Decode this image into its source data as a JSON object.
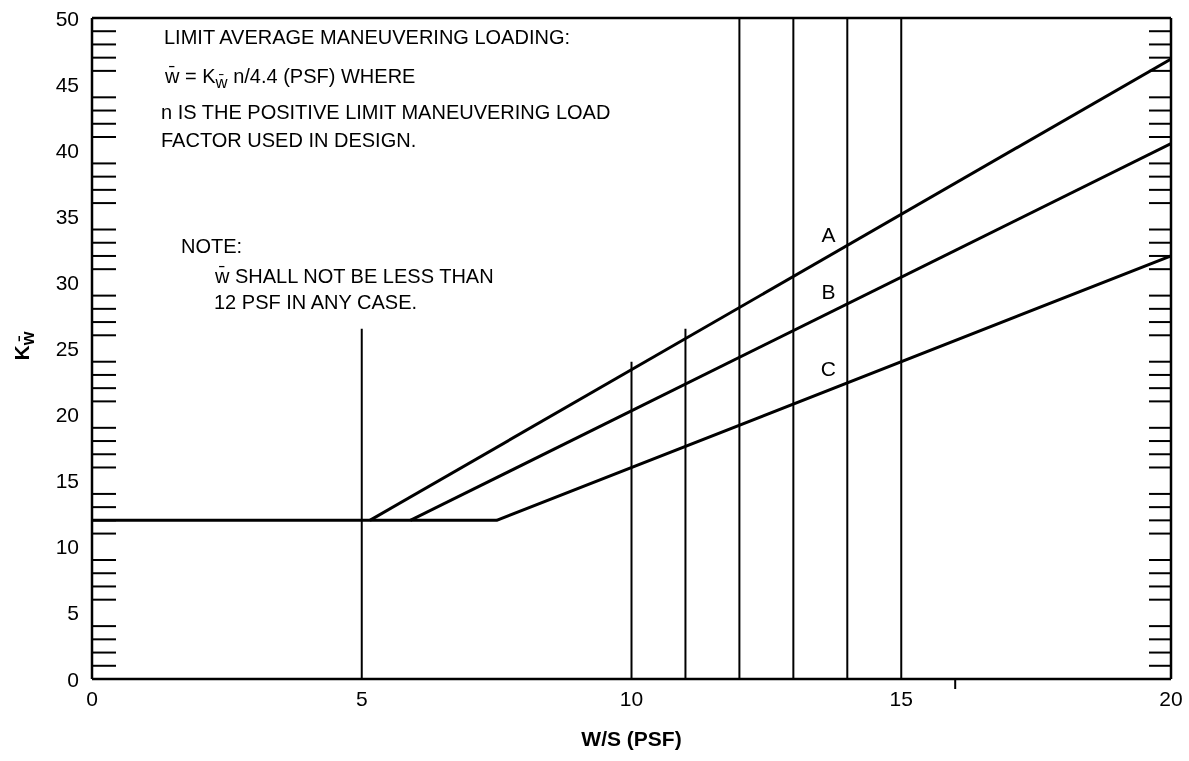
{
  "chart_data": {
    "type": "line",
    "xlabel": "W/S (PSF)",
    "ylabel": "K$_{w̄}$",
    "annotations": [
      "LIMIT AVERAGE MANEUVERING LOADING:",
      "w̄ = K$_{w̄}$ n/4.4  (PSF)  WHERE",
      "n IS THE POSITIVE LIMIT MANEUVERING LOAD",
      "FACTOR USED IN DESIGN.",
      "NOTE:",
      "w̄ SHALL NOT BE LESS THAN",
      "12 PSF IN ANY CASE."
    ],
    "series": [
      {
        "name": "A",
        "color": "#000000",
        "x": [
          5.15,
          20
        ],
        "values": [
          12,
          46.9
        ]
      },
      {
        "name": "B",
        "color": "#000000",
        "x": [
          5.9,
          20
        ],
        "values": [
          12,
          40.5
        ]
      },
      {
        "name": "C",
        "color": "#000000",
        "x": [
          0,
          7.5,
          20
        ],
        "values": [
          12,
          12,
          32
        ]
      },
      {
        "color": "#000000",
        "x": [
          5,
          5
        ],
        "values": [
          0,
          26.5
        ]
      },
      {
        "color": "#000000",
        "x": [
          10,
          10
        ],
        "values": [
          0,
          24
        ]
      },
      {
        "color": "#000000",
        "x": [
          11,
          11
        ],
        "values": [
          0,
          26.5
        ]
      }
    ],
    "ref_lines": [
      {
        "axis": "x",
        "value": 12,
        "color": "#000000"
      },
      {
        "axis": "x",
        "value": 13,
        "color": "#000000"
      },
      {
        "axis": "x",
        "value": 14,
        "color": "#000000"
      },
      {
        "axis": "x",
        "value": 15,
        "color": "#000000"
      }
    ],
    "xlim": [
      0,
      20
    ],
    "ylim": [
      0,
      50
    ],
    "xticks": [
      0,
      5,
      10,
      15,
      {
        "value": 16,
        "label": null
      },
      20
    ],
    "yticks": [
      0,
      5,
      10,
      15,
      20,
      25,
      30,
      35,
      40,
      45,
      50
    ]
  }
}
